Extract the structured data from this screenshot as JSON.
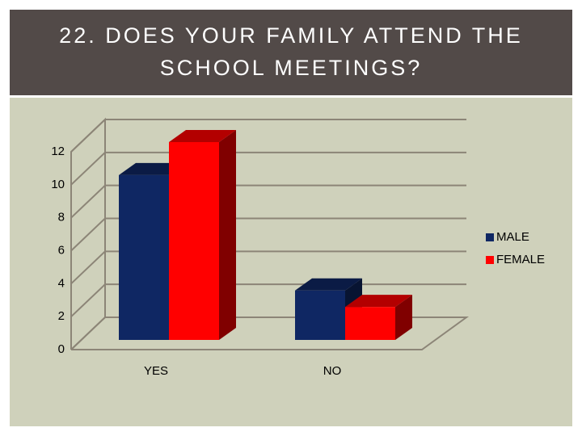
{
  "chart_data": {
    "type": "bar3d",
    "title": "22. DOES YOUR FAMILY ATTEND THE SCHOOL MEETINGS?",
    "categories": [
      "YES",
      "NO"
    ],
    "series": [
      {
        "name": "MALE",
        "color": "#0f2763",
        "values": [
          10,
          3
        ]
      },
      {
        "name": "FEMALE",
        "color": "#ff0000",
        "values": [
          12,
          2
        ]
      }
    ],
    "ylim": [
      0,
      12
    ],
    "yticks": [
      0,
      2,
      4,
      6,
      8,
      10,
      12
    ],
    "grid": true,
    "legend": "right"
  }
}
